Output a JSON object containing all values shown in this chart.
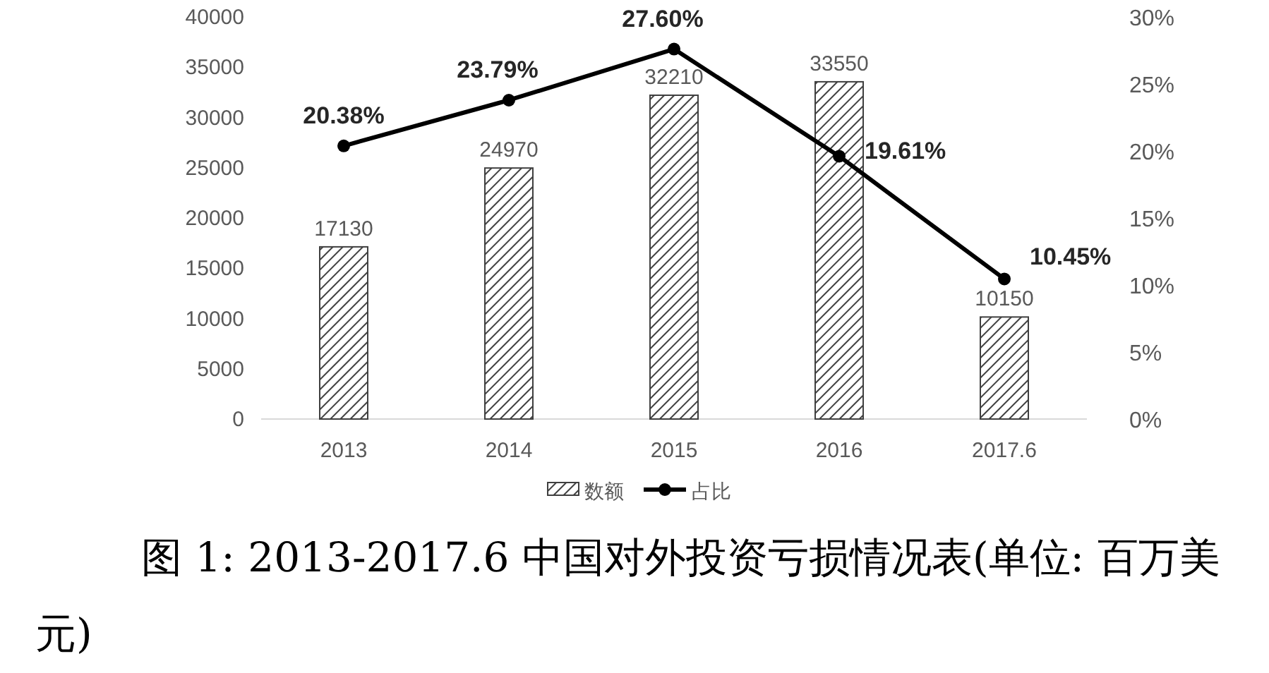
{
  "chart_data": {
    "type": "bar",
    "title": "图 1: 2013-2017.6 中国对外投资亏损情况表(单位: 百万美元)",
    "categories": [
      "2013",
      "2014",
      "2015",
      "2016",
      "2017.6"
    ],
    "series": [
      {
        "name": "数额",
        "color": "#404040",
        "values": [
          17130,
          24970,
          32210,
          33550,
          10150
        ],
        "value_labels": [
          "17130",
          "24970",
          "32210",
          "33550",
          "10150"
        ]
      },
      {
        "name": "占比",
        "type": "line",
        "axis": "y2",
        "color": "#000000",
        "marker": "circle",
        "values": [
          20.38,
          23.79,
          27.6,
          19.61,
          10.45
        ],
        "value_labels": [
          "20.38%",
          "23.79%",
          "27.60%",
          "19.61%",
          "10.45%"
        ]
      }
    ],
    "ylim": [
      0,
      40000
    ],
    "yticks": [
      0,
      5000,
      10000,
      15000,
      20000,
      25000,
      30000,
      35000,
      40000
    ],
    "y2lim": [
      0,
      30
    ],
    "y2ticks": [
      {
        "value": 0,
        "label": "0%"
      },
      {
        "value": 5,
        "label": "5%"
      },
      {
        "value": 10,
        "label": "10%"
      },
      {
        "value": 15,
        "label": "15%"
      },
      {
        "value": 20,
        "label": "20%"
      },
      {
        "value": 25,
        "label": "25%"
      },
      {
        "value": 30,
        "label": "30%"
      }
    ],
    "legend": "bottom"
  }
}
